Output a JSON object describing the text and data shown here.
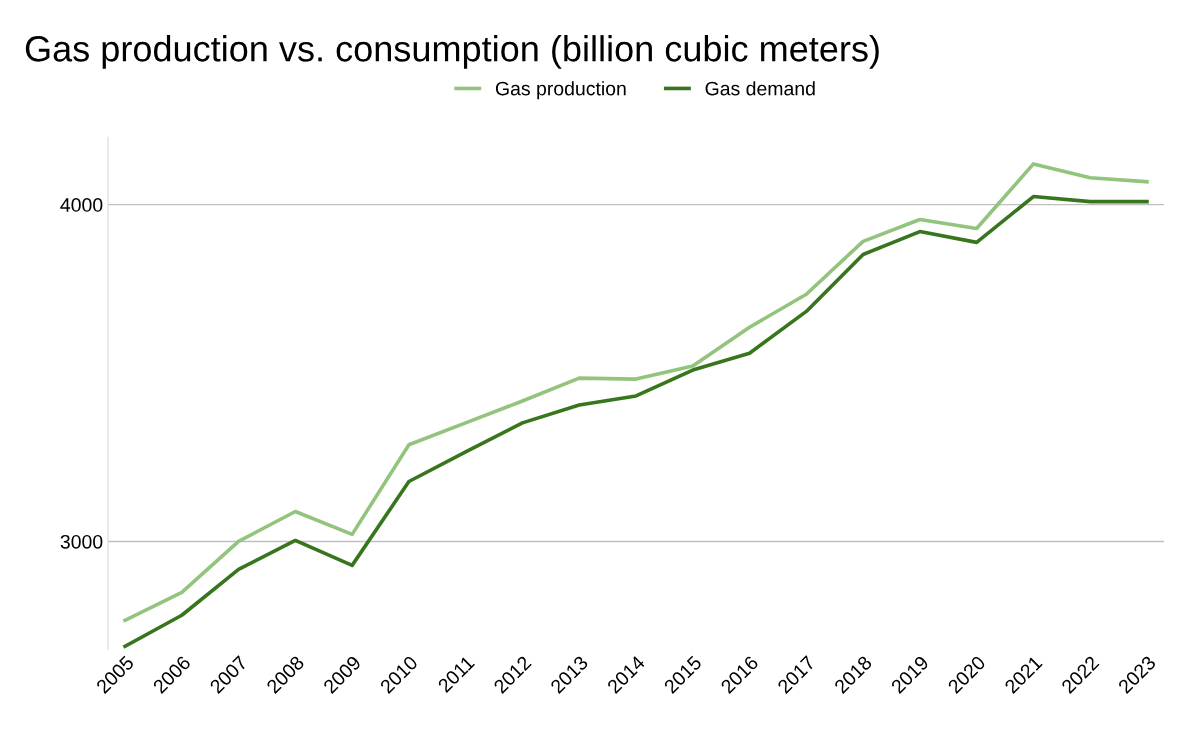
{
  "chart_data": {
    "type": "line",
    "title": "Gas production vs. consumption (billion cubic meters)",
    "categories": [
      "2005",
      "2006",
      "2007",
      "2008",
      "2009",
      "2010",
      "2011",
      "2012",
      "2013",
      "2014",
      "2015",
      "2016",
      "2017",
      "2018",
      "2019",
      "2020",
      "2021",
      "2022",
      "2023"
    ],
    "series": [
      {
        "name": "Gas production",
        "color": "#93c47d",
        "values": [
          2766,
          2849,
          3000,
          3089,
          3021,
          3287,
          3352,
          3417,
          3485,
          3482,
          3521,
          3636,
          3734,
          3891,
          3956,
          3929,
          4121,
          4080,
          4068
        ]
      },
      {
        "name": "Gas demand",
        "color": "#38761d",
        "values": [
          2689,
          2781,
          2917,
          3003,
          2929,
          3178,
          3266,
          3352,
          3405,
          3432,
          3509,
          3559,
          3683,
          3852,
          3920,
          3888,
          4024,
          4009,
          4009
        ]
      }
    ],
    "ylim": [
      2680,
      4200
    ],
    "yticks": [
      3000,
      4000
    ],
    "grid": "y",
    "legend": "top",
    "marker": "none",
    "line_style": "solid"
  }
}
